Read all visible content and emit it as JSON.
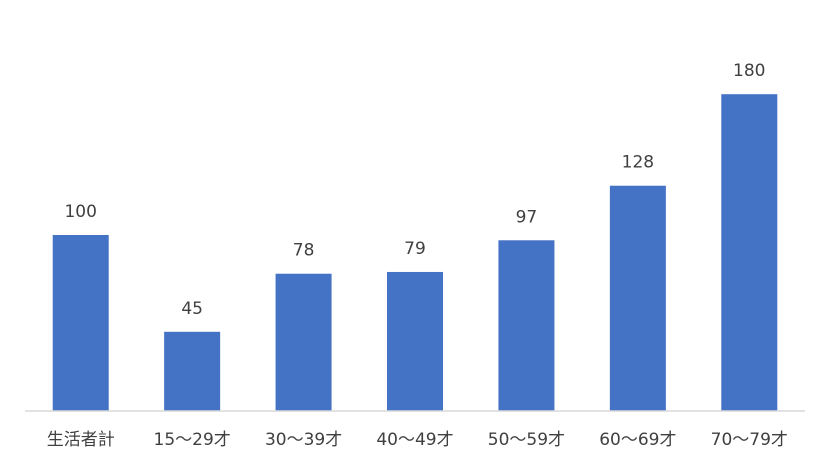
{
  "chart_data": {
    "type": "bar",
    "categories": [
      "生活者計",
      "15～29才",
      "30～39才",
      "40～49才",
      "50～59才",
      "60～69才",
      "70～79才"
    ],
    "values": [
      100,
      45,
      78,
      79,
      97,
      128,
      180
    ],
    "color": "#4472c4",
    "ylim": [
      0,
      200
    ]
  }
}
